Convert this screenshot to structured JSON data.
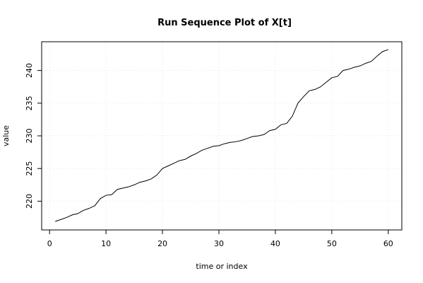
{
  "chart_data": {
    "type": "line",
    "title": "Run Sequence Plot of X[t]",
    "xlabel": "time or index",
    "ylabel": "value",
    "xlim": [
      -1.4,
      62.4
    ],
    "ylim": [
      215.6,
      244.4
    ],
    "x_ticks": [
      0,
      10,
      20,
      30,
      40,
      50,
      60
    ],
    "y_ticks": [
      220,
      225,
      230,
      235,
      240
    ],
    "grid": true,
    "series": [
      {
        "x": [
          1,
          2,
          3,
          4,
          5,
          6,
          7,
          8,
          9,
          10,
          11,
          12,
          13,
          14,
          15,
          16,
          17,
          18,
          19,
          20,
          21,
          22,
          23,
          24,
          25,
          26,
          27,
          28,
          29,
          30,
          31,
          32,
          33,
          34,
          35,
          36,
          37,
          38,
          39,
          40,
          41,
          42,
          43,
          44,
          45,
          46,
          47,
          48,
          49,
          50,
          51,
          52,
          53,
          54,
          55,
          56,
          57,
          58,
          59,
          60
        ],
        "values": [
          216.9,
          217.2,
          217.5,
          217.9,
          218.1,
          218.6,
          218.9,
          219.3,
          220.4,
          220.9,
          221.0,
          221.8,
          222.0,
          222.2,
          222.5,
          222.9,
          223.1,
          223.4,
          224.0,
          225.0,
          225.4,
          225.8,
          226.2,
          226.4,
          226.9,
          227.3,
          227.8,
          228.1,
          228.4,
          228.5,
          228.8,
          229.0,
          229.1,
          229.3,
          229.6,
          229.9,
          230.0,
          230.2,
          230.8,
          231.0,
          231.7,
          231.9,
          233.0,
          235.0,
          236.0,
          236.9,
          237.1,
          237.5,
          238.2,
          238.9,
          239.1,
          240.0,
          240.2,
          240.5,
          240.7,
          241.1,
          241.4,
          242.2,
          242.9,
          243.2
        ],
        "color": "#000000"
      }
    ]
  }
}
